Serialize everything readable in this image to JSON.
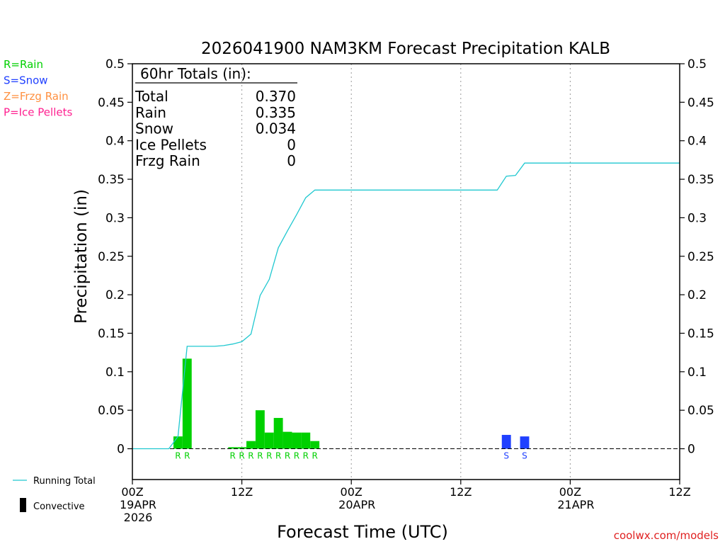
{
  "chart_data": {
    "type": "bar",
    "title": "2026041900 NAM3KM Forecast Precipitation KALB",
    "xlabel": "Forecast Time (UTC)",
    "ylabel": "Precipitation (in)",
    "ylim": [
      -0.04,
      0.5
    ],
    "y_ticks": [
      0,
      0.05,
      0.1,
      0.15,
      0.2,
      0.25,
      0.3,
      0.35,
      0.4,
      0.45,
      0.5
    ],
    "y_tick_labels": [
      "0",
      "0.05",
      "0.1",
      "0.15",
      "0.2",
      "0.25",
      "0.3",
      "0.35",
      "0.4",
      "0.45",
      "0.5"
    ],
    "x_range_hours": [
      0,
      60
    ],
    "x_ticks": [
      {
        "hour": 0,
        "lines": [
          "00Z",
          "19APR",
          "2026"
        ]
      },
      {
        "hour": 12,
        "lines": [
          "12Z"
        ]
      },
      {
        "hour": 24,
        "lines": [
          "00Z",
          "20APR"
        ]
      },
      {
        "hour": 36,
        "lines": [
          "12Z"
        ]
      },
      {
        "hour": 48,
        "lines": [
          "00Z",
          "21APR"
        ]
      },
      {
        "hour": 60,
        "lines": [
          "12Z"
        ]
      }
    ],
    "grid": "vertical dotted at 12Z and 00Z",
    "bars": [
      {
        "hour": 5,
        "value": 0.016,
        "type": "R",
        "color": "#00d000"
      },
      {
        "hour": 6,
        "value": 0.117,
        "type": "R",
        "color": "#00d000"
      },
      {
        "hour": 11,
        "value": 0.002,
        "type": "R",
        "color": "#00d000"
      },
      {
        "hour": 12,
        "value": 0.002,
        "type": "R",
        "color": "#00d000"
      },
      {
        "hour": 13,
        "value": 0.01,
        "type": "R",
        "color": "#00d000"
      },
      {
        "hour": 14,
        "value": 0.05,
        "type": "R",
        "color": "#00d000"
      },
      {
        "hour": 15,
        "value": 0.021,
        "type": "R",
        "color": "#00d000"
      },
      {
        "hour": 16,
        "value": 0.04,
        "type": "R",
        "color": "#00d000"
      },
      {
        "hour": 17,
        "value": 0.022,
        "type": "R",
        "color": "#00d000"
      },
      {
        "hour": 18,
        "value": 0.021,
        "type": "R",
        "color": "#00d000"
      },
      {
        "hour": 19,
        "value": 0.021,
        "type": "R",
        "color": "#00d000"
      },
      {
        "hour": 20,
        "value": 0.01,
        "type": "R",
        "color": "#00d000"
      },
      {
        "hour": 41,
        "value": 0.018,
        "type": "S",
        "color": "#2040ff"
      },
      {
        "hour": 43,
        "value": 0.016,
        "type": "S",
        "color": "#2040ff"
      }
    ],
    "running_total": {
      "name": "Running Total",
      "color": "#20c8d0",
      "x": [
        0,
        1,
        2,
        3,
        4,
        5,
        6,
        7,
        8,
        9,
        10,
        11,
        12,
        13,
        14,
        15,
        16,
        17,
        18,
        19,
        20,
        21,
        22,
        23,
        24,
        30,
        36,
        40,
        41,
        42,
        43,
        44,
        48,
        54,
        60
      ],
      "y": [
        0,
        0,
        0,
        0,
        0,
        0.016,
        0.133,
        0.133,
        0.133,
        0.133,
        0.134,
        0.136,
        0.139,
        0.149,
        0.199,
        0.22,
        0.261,
        0.283,
        0.304,
        0.326,
        0.336,
        0.336,
        0.336,
        0.336,
        0.336,
        0.336,
        0.336,
        0.336,
        0.354,
        0.355,
        0.371,
        0.371,
        0.371,
        0.371,
        0.371
      ]
    },
    "totals_box": {
      "title": "60hr Totals (in):",
      "rows": [
        {
          "label": "Total",
          "value": "0.370"
        },
        {
          "label": "Rain",
          "value": "0.335"
        },
        {
          "label": "Snow",
          "value": "0.034"
        },
        {
          "label": "Ice Pellets",
          "value": "0"
        },
        {
          "label": "Frzg Rain",
          "value": "0"
        }
      ]
    },
    "type_legend": [
      {
        "text": "R=Rain",
        "color": "#00d000"
      },
      {
        "text": "S=Snow",
        "color": "#2040ff"
      },
      {
        "text": "Z=Frzg Rain",
        "color": "#ff9040"
      },
      {
        "text": "P=Ice Pellets",
        "color": "#ff2090"
      }
    ],
    "bottom_legend": [
      {
        "text": "Running Total",
        "kind": "line",
        "color": "#20c8d0"
      },
      {
        "text": "Convective",
        "kind": "bar",
        "color": "#000000"
      }
    ],
    "credit": "coolwx.com/models"
  }
}
